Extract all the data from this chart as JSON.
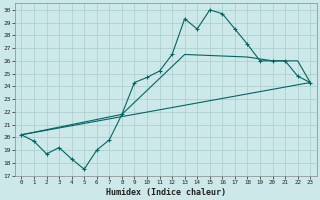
{
  "xlabel": "Humidex (Indice chaleur)",
  "background_color": "#cce8e8",
  "grid_color": "#aacccc",
  "line_color": "#006666",
  "xlim": [
    -0.5,
    23.5
  ],
  "ylim": [
    17,
    30.5
  ],
  "yticks": [
    17,
    18,
    19,
    20,
    21,
    22,
    23,
    24,
    25,
    26,
    27,
    28,
    29,
    30
  ],
  "xticks": [
    0,
    1,
    2,
    3,
    4,
    5,
    6,
    7,
    8,
    9,
    10,
    11,
    12,
    13,
    14,
    15,
    16,
    17,
    18,
    19,
    20,
    21,
    22,
    23
  ],
  "line1_x": [
    0,
    1,
    2,
    3,
    4,
    5,
    6,
    7,
    8,
    9,
    10,
    11,
    12,
    13,
    14,
    15,
    16,
    17,
    18,
    19,
    20,
    21,
    22,
    23
  ],
  "line1_y": [
    20.2,
    19.7,
    18.7,
    19.2,
    18.3,
    17.5,
    19.0,
    19.8,
    21.8,
    24.3,
    24.7,
    25.2,
    26.5,
    29.3,
    28.5,
    30.0,
    29.7,
    28.5,
    27.3,
    26.0,
    26.0,
    26.0,
    24.8,
    24.3
  ],
  "line2_x": [
    0,
    23
  ],
  "line2_y": [
    20.2,
    24.3
  ],
  "line3_x": [
    0,
    8,
    13,
    18,
    20,
    22,
    23
  ],
  "line3_y": [
    20.2,
    21.8,
    26.5,
    26.3,
    26.0,
    26.0,
    24.3
  ]
}
